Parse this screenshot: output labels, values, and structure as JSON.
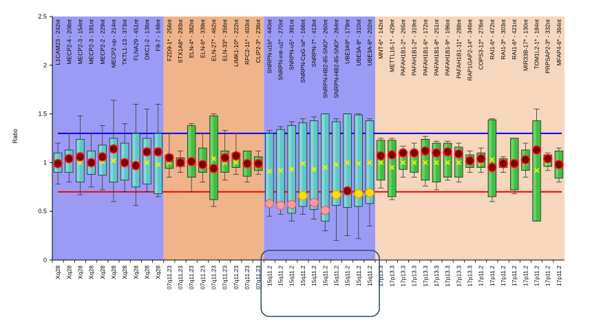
{
  "chart_data": {
    "type": "box",
    "title": "",
    "ylabel": "Ratio",
    "xlabel": "",
    "ylim": [
      0,
      2.5
    ],
    "yticks": [
      "0",
      "0.5",
      "1",
      "1.5",
      "2",
      "2.5"
    ],
    "regions": [
      {
        "name": "Xq28",
        "color": "#9b9bf5",
        "start": 0,
        "end": 10
      },
      {
        "name": "07q11.23",
        "color": "#f0b48a",
        "start": 10,
        "end": 19
      },
      {
        "name": "15q11.2",
        "color": "#9b9bf5",
        "start": 19,
        "end": 29
      },
      {
        "name": "17p13.3 / 17p11.2",
        "color": "#f6d6bc",
        "start": 29,
        "end": 46
      }
    ],
    "thresholds": {
      "upper": 1.3,
      "lower": 0.7,
      "upper_color": "#0000ff",
      "lower_color": "#ff0000"
    },
    "probes": [
      {
        "label": "L1CAM23 - 242nt",
        "chrom": "Xq28",
        "ratio": 0.99,
        "median": 1.0,
        "q1": 0.9,
        "q3": 1.1,
        "min": 0.78,
        "max": 1.2,
        "marker": "dark"
      },
      {
        "label": "MECP2-4 - 208nt",
        "chrom": "Xq28",
        "ratio": 1.04,
        "median": 1.03,
        "q1": 0.9,
        "q3": 1.13,
        "min": 0.8,
        "max": 1.3,
        "marker": "dark"
      },
      {
        "label": "MECP2-3 - 154nt",
        "chrom": "Xq28",
        "ratio": 1.06,
        "median": 1.0,
        "q1": 0.8,
        "q3": 1.24,
        "min": 0.67,
        "max": 1.48,
        "marker": "dark"
      },
      {
        "label": "MECP2-3 - 191nt",
        "chrom": "Xq28",
        "ratio": 1.0,
        "median": 1.0,
        "q1": 0.88,
        "q3": 1.12,
        "min": 0.75,
        "max": 1.3,
        "marker": "dark"
      },
      {
        "label": "MECP2-2 - 229nt",
        "chrom": "Xq28",
        "ratio": 1.06,
        "median": 1.01,
        "q1": 0.87,
        "q3": 1.18,
        "min": 0.72,
        "max": 1.38,
        "marker": "dark"
      },
      {
        "label": "MECP2-up - 214nt",
        "chrom": "Xq28",
        "ratio": 1.14,
        "median": 1.02,
        "q1": 0.8,
        "q3": 1.25,
        "min": 0.6,
        "max": 1.64,
        "marker": "dark"
      },
      {
        "label": "TKTL1-13 - 373nt",
        "chrom": "Xq28",
        "ratio": 1.0,
        "median": 1.0,
        "q1": 0.82,
        "q3": 1.2,
        "min": 0.7,
        "max": 1.4,
        "marker": "dark"
      },
      {
        "label": "FLNA29 - 451nt",
        "chrom": "Xq28",
        "ratio": 0.97,
        "median": 1.0,
        "q1": 0.75,
        "q3": 1.3,
        "min": 0.56,
        "max": 1.6,
        "marker": "dark"
      },
      {
        "label": "DKC1-2 - 136nt",
        "chrom": "Xq28",
        "ratio": 1.11,
        "median": 1.0,
        "q1": 0.78,
        "q3": 1.25,
        "min": 0.7,
        "max": 1.55,
        "marker": "dark"
      },
      {
        "label": "F8-7 - 148nt",
        "chrom": "Xq28",
        "ratio": 1.11,
        "median": 0.98,
        "q1": 0.68,
        "q3": 1.3,
        "min": 0.65,
        "max": 1.6,
        "marker": "dark"
      },
      {
        "label": "FZD9-1* - 256nt",
        "chrom": "07q11.23",
        "ratio": 1.05,
        "median": 1.0,
        "q1": 0.94,
        "q3": 1.08,
        "min": 0.85,
        "max": 1.3,
        "marker": "dark"
      },
      {
        "label": "STX1A8* - 293nt",
        "chrom": "07q11.23",
        "ratio": 1.0,
        "median": 1.0,
        "q1": 0.96,
        "q3": 1.05,
        "min": 0.9,
        "max": 1.12,
        "marker": "dark"
      },
      {
        "label": "ELN-4* - 382nt",
        "chrom": "07q11.23",
        "ratio": 1.01,
        "median": 1.0,
        "q1": 0.85,
        "q3": 1.38,
        "min": 0.7,
        "max": 1.4,
        "marker": "dark"
      },
      {
        "label": "ELN-6* - 339nt",
        "chrom": "07q11.23",
        "ratio": 0.98,
        "median": 1.0,
        "q1": 0.9,
        "q3": 1.15,
        "min": 0.8,
        "max": 1.3,
        "marker": "dark"
      },
      {
        "label": "ELN-27* - 462nt",
        "chrom": "07q11.23",
        "ratio": 0.94,
        "median": 1.04,
        "q1": 0.62,
        "q3": 1.48,
        "min": 0.55,
        "max": 1.5,
        "marker": "dark"
      },
      {
        "label": "ELN-33* - 356nt",
        "chrom": "07q11.23",
        "ratio": 1.05,
        "median": 1.0,
        "q1": 0.9,
        "q3": 1.12,
        "min": 0.82,
        "max": 1.33,
        "marker": "dark"
      },
      {
        "label": "LIMK1-10* - 222nt",
        "chrom": "07q11.23",
        "ratio": 1.07,
        "median": 1.0,
        "q1": 0.95,
        "q3": 1.1,
        "min": 0.88,
        "max": 1.3,
        "marker": "dark"
      },
      {
        "label": "RFC2-11* - 403nt",
        "chrom": "07q11.23",
        "ratio": 0.99,
        "median": 1.0,
        "q1": 0.86,
        "q3": 1.12,
        "min": 0.8,
        "max": 1.12,
        "marker": "dark"
      },
      {
        "label": "CLIP2-3* - 236nt",
        "chrom": "07q11.23",
        "ratio": 0.99,
        "median": 1.0,
        "q1": 0.92,
        "q3": 1.06,
        "min": 0.88,
        "max": 1.12,
        "marker": "dark"
      },
      {
        "label": "SNRPN-u1b* - 440nt",
        "chrom": "15q11.2",
        "ratio": 0.58,
        "median": 0.91,
        "q1": 0.56,
        "q3": 1.3,
        "min": 0.45,
        "max": 1.33,
        "marker": "pink"
      },
      {
        "label": "SNRPN-intr-u2* - 270nt",
        "chrom": "15q11.2",
        "ratio": 0.56,
        "median": 0.92,
        "q1": 0.55,
        "q3": 1.34,
        "min": 0.47,
        "max": 1.37,
        "marker": "pink"
      },
      {
        "label": "SNRPN-u5* - 391nt",
        "chrom": "15q11.2",
        "ratio": 0.57,
        "median": 0.93,
        "q1": 0.48,
        "q3": 1.38,
        "min": 0.4,
        "max": 1.42,
        "marker": "pink"
      },
      {
        "label": "SNRPN-CpG isl* - 166nt",
        "chrom": "15q11.2",
        "ratio": 0.66,
        "median": 0.99,
        "q1": 0.55,
        "q3": 1.41,
        "min": 0.47,
        "max": 1.45,
        "marker": "yellow"
      },
      {
        "label": "SNRPN-7* - 413nt",
        "chrom": "15q11.2",
        "ratio": 0.59,
        "median": 0.93,
        "q1": 0.52,
        "q3": 1.43,
        "min": 0.42,
        "max": 1.47,
        "marker": "pink"
      },
      {
        "label": "SNRPN-HB2-85-SNO* - 260nt",
        "chrom": "15q11.2",
        "ratio": 0.51,
        "median": 0.95,
        "q1": 0.4,
        "q3": 1.5,
        "min": 0.3,
        "max": 1.5,
        "marker": "pink"
      },
      {
        "label": "SNRPN-HB2-85-SNO* - 264nt",
        "chrom": "15q11.2",
        "ratio": 0.67,
        "median": 0.98,
        "q1": 0.56,
        "q3": 1.42,
        "min": 0.2,
        "max": 1.45,
        "marker": "yellow"
      },
      {
        "label": "UBE3A9* - 179nt",
        "chrom": "15q11.2",
        "ratio": 0.71,
        "median": 1.0,
        "q1": 0.54,
        "q3": 1.5,
        "min": 0.25,
        "max": 1.5,
        "marker": "dark"
      },
      {
        "label": "UBE3A-8* - 310nt",
        "chrom": "15q11.2",
        "ratio": 0.68,
        "median": 0.99,
        "q1": 0.55,
        "q3": 1.49,
        "min": 0.22,
        "max": 1.5,
        "marker": "yellow"
      },
      {
        "label": "UBE3A-6* - 202nt",
        "chrom": "15q11.2",
        "ratio": 0.69,
        "median": 1.0,
        "q1": 0.58,
        "q3": 1.43,
        "min": 0.35,
        "max": 1.45,
        "marker": "yellow"
      },
      {
        "label": "MNT-6* - 142nt",
        "chrom": "17p13.3",
        "ratio": 1.07,
        "median": 1.0,
        "q1": 0.82,
        "q3": 1.23,
        "min": 0.74,
        "max": 1.25,
        "marker": "dark"
      },
      {
        "label": "METTL16-1* - 429nt",
        "chrom": "17p13.3",
        "ratio": 1.08,
        "median": 0.95,
        "q1": 0.65,
        "q3": 1.23,
        "min": 0.62,
        "max": 1.25,
        "marker": "dark"
      },
      {
        "label": "PAFAH1B1-2* - 265nt",
        "chrom": "17p13.3",
        "ratio": 1.1,
        "median": 1.0,
        "q1": 0.93,
        "q3": 1.1,
        "min": 0.85,
        "max": 1.17,
        "marker": "dark"
      },
      {
        "label": "PAFAH1B1-2* - 319nt",
        "chrom": "17p13.3",
        "ratio": 1.1,
        "median": 1.0,
        "q1": 0.9,
        "q3": 1.1,
        "min": 0.85,
        "max": 1.2,
        "marker": "dark"
      },
      {
        "label": "PAFAH1B1-6* - 172nt",
        "chrom": "17p13.3",
        "ratio": 1.12,
        "median": 1.0,
        "q1": 0.82,
        "q3": 1.24,
        "min": 0.76,
        "max": 1.27,
        "marker": "dark"
      },
      {
        "label": "PAFAH1B1-8* - 251nt",
        "chrom": "17p13.3",
        "ratio": 1.1,
        "median": 1.0,
        "q1": 0.8,
        "q3": 1.2,
        "min": 0.72,
        "max": 1.22,
        "marker": "dark"
      },
      {
        "label": "PAFAH1B1-9* - 196nt",
        "chrom": "17p13.3",
        "ratio": 1.11,
        "median": 1.0,
        "q1": 0.85,
        "q3": 1.2,
        "min": 0.82,
        "max": 1.22,
        "marker": "dark"
      },
      {
        "label": "PAFAH1B1-11* - 288nt",
        "chrom": "17p13.3",
        "ratio": 1.09,
        "median": 1.0,
        "q1": 0.85,
        "q3": 1.16,
        "min": 0.8,
        "max": 1.2,
        "marker": "dark"
      },
      {
        "label": "RAP1GAP2-14* - 346nt",
        "chrom": "17p13.3",
        "ratio": 1.02,
        "median": 1.0,
        "q1": 0.95,
        "q3": 1.08,
        "min": 0.9,
        "max": 1.12,
        "marker": "dark"
      },
      {
        "label": "COPS3-12* - 278nt",
        "chrom": "17p11.2",
        "ratio": 1.04,
        "median": 1.0,
        "q1": 0.95,
        "q3": 1.1,
        "min": 0.9,
        "max": 1.15,
        "marker": "dark"
      },
      {
        "label": "RAI1-6* - 472nt",
        "chrom": "17p11.2",
        "ratio": 0.95,
        "median": 1.03,
        "q1": 0.65,
        "q3": 1.44,
        "min": 0.6,
        "max": 1.45,
        "marker": "dark"
      },
      {
        "label": "RAI1-3* - 303nt",
        "chrom": "17p11.2",
        "ratio": 0.99,
        "median": 1.0,
        "q1": 0.95,
        "q3": 1.04,
        "min": 0.9,
        "max": 1.06,
        "marker": "dark"
      },
      {
        "label": "RAI1-6* - 421nt",
        "chrom": "17p11.2",
        "ratio": 0.99,
        "median": 0.98,
        "q1": 0.72,
        "q3": 1.25,
        "min": 0.68,
        "max": 1.25,
        "marker": "dark"
      },
      {
        "label": "MIR33B-17* - 130nt",
        "chrom": "17p11.2",
        "ratio": 1.03,
        "median": 1.0,
        "q1": 0.92,
        "q3": 1.13,
        "min": 0.85,
        "max": 1.2,
        "marker": "dark"
      },
      {
        "label": "TOM1L2-1* - 184nt",
        "chrom": "17p11.2",
        "ratio": 1.13,
        "median": 0.92,
        "q1": 0.4,
        "q3": 1.43,
        "min": 0.4,
        "max": 1.55,
        "marker": "dark"
      },
      {
        "label": "PRPSAP2-3* - 332nt",
        "chrom": "17p11.2",
        "ratio": 1.04,
        "median": 1.0,
        "q1": 0.96,
        "q3": 1.08,
        "min": 0.92,
        "max": 1.1,
        "marker": "dark"
      },
      {
        "label": "MFAP4-6* - 364nt",
        "chrom": "17p11.2",
        "ratio": 0.98,
        "median": 1.0,
        "q1": 0.84,
        "q3": 1.12,
        "min": 0.8,
        "max": 1.15,
        "marker": "dark"
      }
    ],
    "highlight": {
      "note": "15q11.2 region outlined",
      "start": 19,
      "end": 29,
      "color": "#2c4d6e"
    }
  }
}
